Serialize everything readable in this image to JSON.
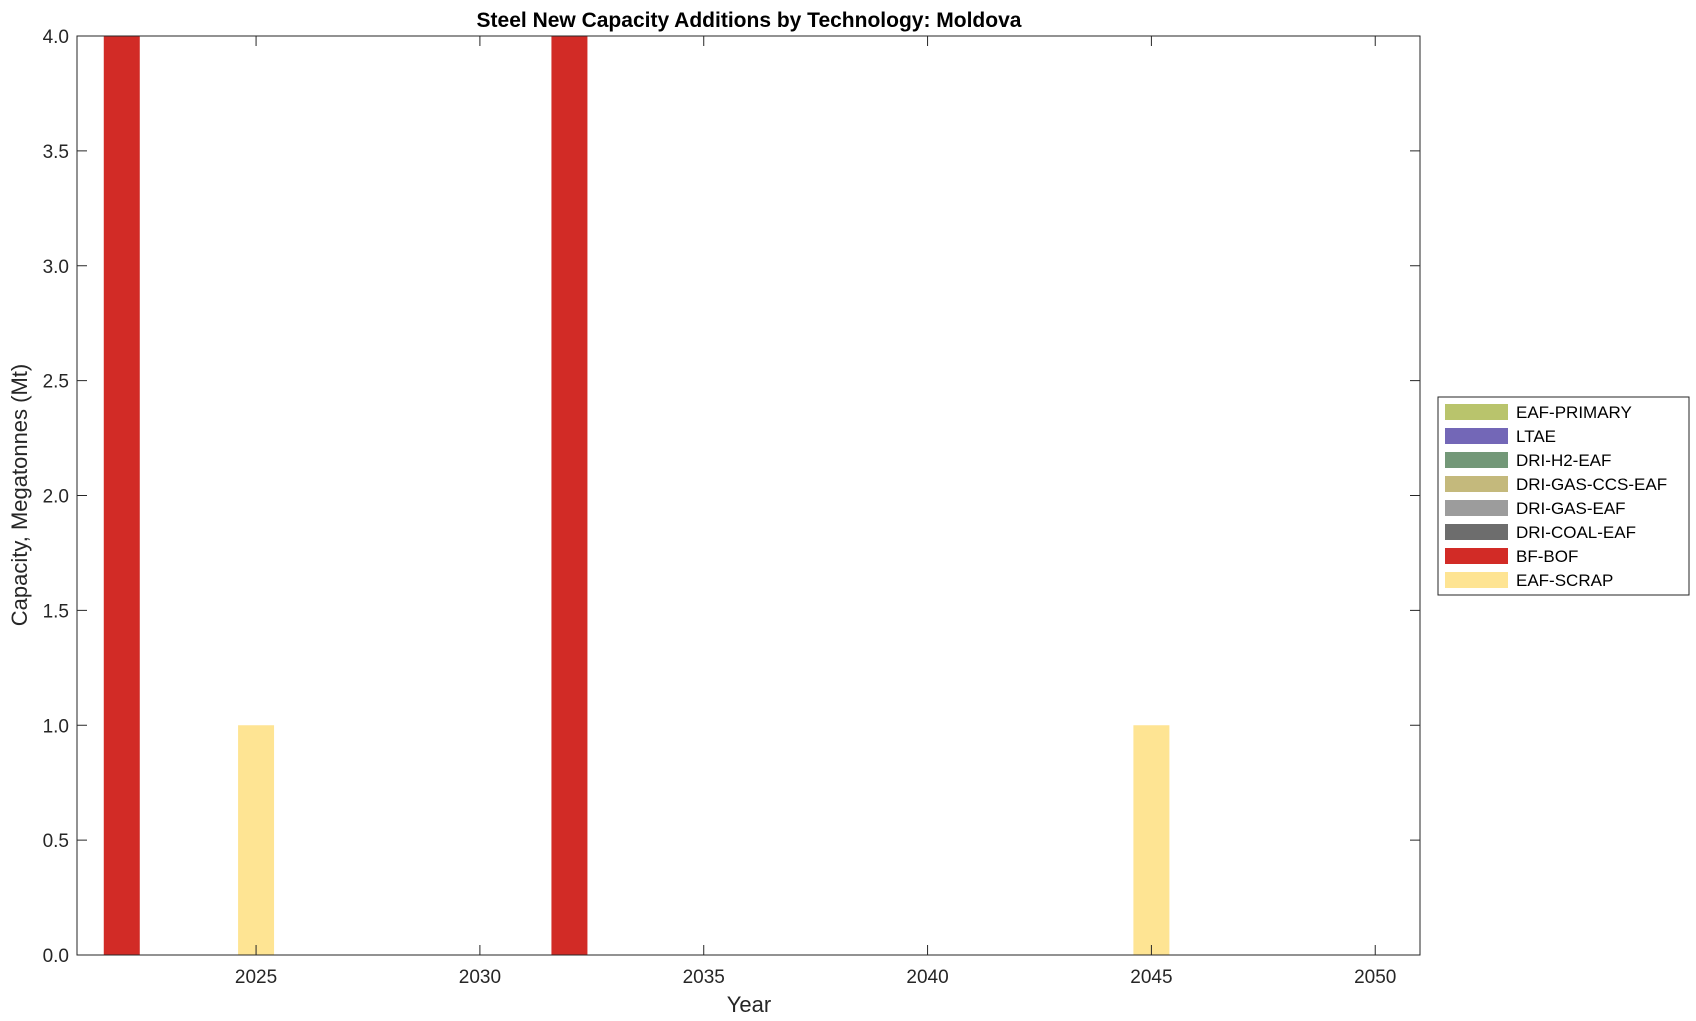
{
  "chart_data": {
    "type": "bar",
    "stacked": true,
    "title": "Steel New Capacity Additions by Technology: Moldova",
    "xlabel": "Year",
    "ylabel": "Capacity, Megatonnes (Mt)",
    "xlim": [
      2021,
      2051
    ],
    "ylim": [
      0,
      4
    ],
    "xticks": [
      2025,
      2030,
      2035,
      2040,
      2045,
      2050
    ],
    "yticks": [
      0,
      0.5,
      1,
      1.5,
      2,
      2.5,
      3,
      3.5,
      4
    ],
    "ytick_labels": [
      "0.0",
      "0.5",
      "1.0",
      "1.5",
      "2.0",
      "2.5",
      "3.0",
      "3.5",
      "4.0"
    ],
    "legend_position": "right",
    "grid": false,
    "x": [
      2022,
      2025,
      2032,
      2045
    ],
    "series": [
      {
        "name": "EAF-PRIMARY",
        "color": "#b9c46c",
        "values": [
          0,
          0,
          0,
          0
        ]
      },
      {
        "name": "LTAE",
        "color": "#7367b7",
        "values": [
          0,
          0,
          0,
          0
        ]
      },
      {
        "name": "DRI-H2-EAF",
        "color": "#739878",
        "values": [
          0,
          0,
          0,
          0
        ]
      },
      {
        "name": "DRI-GAS-CCS-EAF",
        "color": "#c4b97c",
        "values": [
          0,
          0,
          0,
          0
        ]
      },
      {
        "name": "DRI-GAS-EAF",
        "color": "#9c9c9c",
        "values": [
          0,
          0,
          0,
          0
        ]
      },
      {
        "name": "DRI-COAL-EAF",
        "color": "#6d6d6d",
        "values": [
          0,
          0,
          0,
          0
        ]
      },
      {
        "name": "BF-BOF",
        "color": "#d22b26",
        "values": [
          4,
          0,
          4,
          0
        ]
      },
      {
        "name": "EAF-SCRAP",
        "color": "#fee493",
        "values": [
          0,
          1,
          0,
          1
        ]
      }
    ]
  }
}
